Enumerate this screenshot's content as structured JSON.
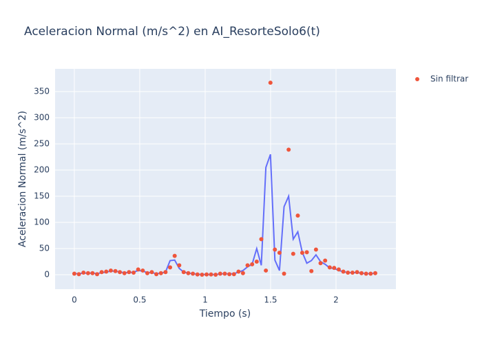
{
  "chart_data": {
    "type": "scatter",
    "title": "Aceleracion Normal (m/s^2) en AI_ResorteSolo6(t)",
    "x_label": "Tiempo (s)",
    "y_label": "Aceleracion Normal (m/s^2)",
    "x": [
      0,
      0.035,
      0.07,
      0.105,
      0.139,
      0.174,
      0.209,
      0.244,
      0.279,
      0.314,
      0.348,
      0.383,
      0.418,
      0.453,
      0.488,
      0.523,
      0.558,
      0.592,
      0.627,
      0.662,
      0.697,
      0.732,
      0.767,
      0.802,
      0.836,
      0.871,
      0.906,
      0.941,
      0.976,
      1.011,
      1.045,
      1.08,
      1.115,
      1.15,
      1.185,
      1.22,
      1.255,
      1.289,
      1.324,
      1.359,
      1.394,
      1.429,
      1.464,
      1.499,
      1.533,
      1.568,
      1.603,
      1.638,
      1.673,
      1.708,
      1.742,
      1.777,
      1.812,
      1.847,
      1.882,
      1.917,
      1.952,
      1.986,
      2.021,
      2.056,
      2.091,
      2.126,
      2.161,
      2.195,
      2.23,
      2.265,
      2.3
    ],
    "series": [
      {
        "color": "#636efa",
        "mode": "lines",
        "values": [
          2,
          2,
          3,
          3,
          3,
          2,
          4,
          5,
          7,
          7,
          5,
          4,
          4,
          5,
          8,
          7,
          4,
          4,
          2,
          3,
          5,
          27,
          28,
          12,
          5,
          3,
          2,
          1,
          0.5,
          0.5,
          0.5,
          0.5,
          1.5,
          2,
          1.5,
          2,
          5,
          8,
          15,
          20,
          50,
          18,
          205,
          230,
          28,
          8,
          130,
          150,
          68,
          82,
          43,
          22,
          27,
          38,
          25,
          20,
          13,
          12,
          8,
          6,
          4,
          4,
          4,
          3,
          2,
          2,
          3
        ]
      },
      {
        "name": "Sin filtrar",
        "color": "#ef553b",
        "mode": "markers",
        "values": [
          2,
          1,
          4,
          3,
          3,
          1,
          5,
          6,
          8,
          7,
          5,
          3,
          5,
          4,
          10,
          8,
          3,
          5,
          1,
          3,
          5,
          14,
          36,
          18,
          5,
          3,
          2,
          0.5,
          0,
          0.5,
          0.5,
          0,
          2,
          2,
          1,
          1,
          6,
          3,
          18,
          20,
          25,
          68,
          8,
          367,
          48,
          42,
          2,
          239,
          40,
          113,
          42,
          43,
          7,
          48,
          22,
          27,
          14,
          13,
          10,
          6,
          4,
          4,
          5,
          3,
          2,
          2,
          3
        ]
      }
    ],
    "xlim": [
      -0.147,
      2.458
    ],
    "ylim": [
      -27.6,
      393.4
    ],
    "xticks": [
      0,
      0.5,
      1,
      1.5,
      2
    ],
    "yticks": [
      0,
      50,
      100,
      150,
      200,
      250,
      300,
      350
    ],
    "grid": true,
    "legend": "right"
  }
}
